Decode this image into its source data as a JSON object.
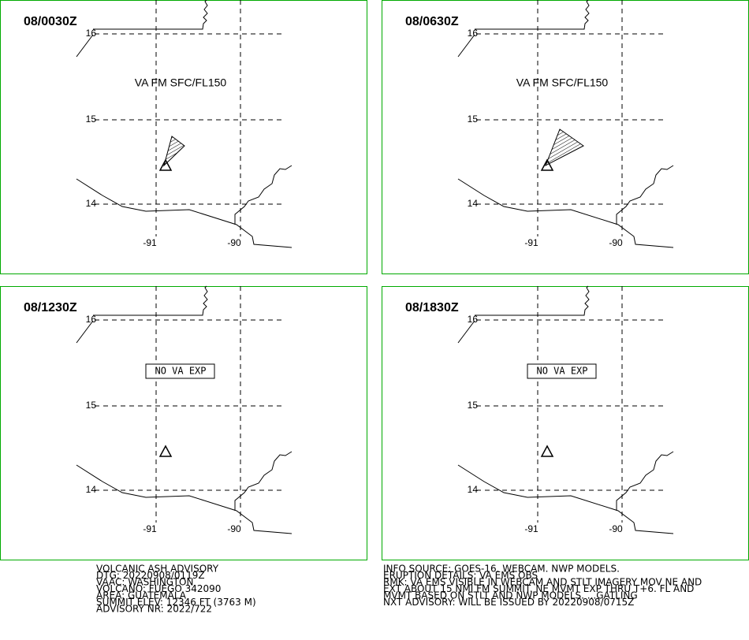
{
  "panels": [
    {
      "time": "08/0030Z",
      "annotation": "VA FM SFC/FL150",
      "boxed": false,
      "ash": "small"
    },
    {
      "time": "08/0630Z",
      "annotation": "VA FM SFC/FL150",
      "boxed": false,
      "ash": "large"
    },
    {
      "time": "08/1230Z",
      "annotation": "NO VA EXP",
      "boxed": true,
      "ash": "none"
    },
    {
      "time": "08/1830Z",
      "annotation": "NO VA EXP",
      "boxed": true,
      "ash": "none"
    }
  ],
  "grid": {
    "lat": [
      "16",
      "15",
      "14"
    ],
    "lon": [
      "-91",
      "-90"
    ]
  },
  "footer": {
    "left": [
      "VOLCANIC ASH ADVISORY",
      "DTG: 20220908/0119Z",
      "VAAC: WASHINGTON",
      "VOLCANO: FUEGO 342090",
      "AREA: GUATEMALA",
      "SUMMIT ELEV: 12346 FT (3763 M)",
      "ADVISORY NR: 2022/722"
    ],
    "right": [
      "INFO SOURCE: GOES-16. WEBCAM. NWP MODELS.",
      "ERUPTION DETAILS: VA EMS OBS",
      "RMK: VA EMS VISIBLE IN WEBCAM AND STLT IMAGERY MOV NE AND",
      "EXT ABOUT 15 NMI FM SUMMIT. NE MVMT EXP THRU T+6. FL AND",
      "MVMT BASED ON STLT AND NWP MODELS. ...GATLING",
      "NXT ADVISORY: WILL BE ISSUED BY 20220908/0715Z"
    ]
  }
}
